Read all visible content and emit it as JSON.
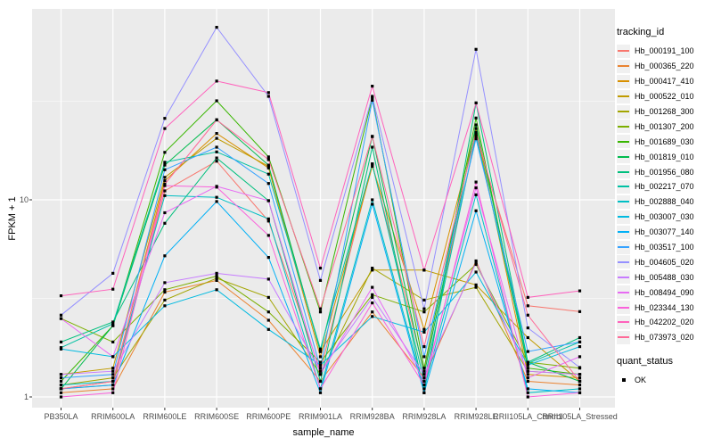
{
  "figure": {
    "background": "#ffffff",
    "panel_bg": "#ebebeb",
    "grid_color": "#ffffff",
    "axis_text_color": "#4d4d4d",
    "tick_mark_color": "#333333"
  },
  "chart_data": {
    "type": "line",
    "title": "",
    "xlabel": "sample_name",
    "ylabel": "FPKM + 1",
    "y_scale": "log10",
    "y_ticks": [
      1,
      10
    ],
    "y_tick_labels": [
      "1",
      "10"
    ],
    "y_minor_ticks": [
      3.162,
      31.62
    ],
    "ylim": [
      0.93,
      95
    ],
    "grid": true,
    "legend_position": "right",
    "point_shape": "filled-square",
    "point_color": "#000000",
    "categories": [
      "PB350LA",
      "RRIM600LA",
      "RRIM600LE",
      "RRIM600SE",
      "RRIM600PE",
      "RRIM901LA",
      "RRIM928BA",
      "RRIM928LA",
      "RRIM928LE",
      "RRII105LA_Control",
      "RRII105LA_Stressed"
    ],
    "series": [
      {
        "name": "Hb_000191_100",
        "color": "#F8766D",
        "values": [
          1.1,
          1.15,
          11.1,
          15.7,
          7.8,
          1.35,
          15.2,
          1.35,
          21.0,
          2.9,
          2.71
        ]
      },
      {
        "name": "Hb_000365_220",
        "color": "#EA8331",
        "values": [
          1.05,
          1.1,
          3.4,
          3.9,
          2.45,
          1.2,
          2.7,
          1.25,
          4.9,
          1.2,
          1.15
        ]
      },
      {
        "name": "Hb_000417_410",
        "color": "#D89000",
        "values": [
          1.1,
          1.2,
          12.5,
          21.7,
          14.5,
          1.6,
          14.8,
          2.2,
          23.0,
          1.3,
          1.25
        ]
      },
      {
        "name": "Hb_000522_010",
        "color": "#C09B00",
        "values": [
          1.3,
          1.4,
          13.0,
          20.5,
          14.8,
          1.7,
          4.4,
          4.4,
          3.7,
          2.0,
          1.2
        ]
      },
      {
        "name": "Hb_001268_300",
        "color": "#A3A500",
        "values": [
          1.15,
          1.25,
          3.1,
          4.0,
          3.2,
          1.3,
          4.5,
          3.1,
          3.6,
          1.35,
          1.3
        ]
      },
      {
        "name": "Hb_001307_200",
        "color": "#7CAE00",
        "values": [
          2.5,
          1.9,
          3.5,
          4.1,
          2.7,
          1.5,
          3.3,
          2.7,
          4.7,
          1.5,
          1.4
        ]
      },
      {
        "name": "Hb_001689_030",
        "color": "#39B600",
        "values": [
          1.2,
          2.3,
          17.4,
          31.8,
          16.5,
          2.7,
          33.0,
          1.4,
          26.0,
          1.4,
          1.3
        ]
      },
      {
        "name": "Hb_001819_010",
        "color": "#00BB4E",
        "values": [
          1.1,
          2.3,
          15.0,
          25.5,
          15.0,
          1.7,
          20.9,
          1.3,
          24.0,
          1.5,
          1.2
        ]
      },
      {
        "name": "Hb_001956_080",
        "color": "#00BF7D",
        "values": [
          1.9,
          2.4,
          7.6,
          16.3,
          9.9,
          1.2,
          18.5,
          1.05,
          31.0,
          1.5,
          2.0
        ]
      },
      {
        "name": "Hb_002217_070",
        "color": "#00C1A3",
        "values": [
          1.78,
          2.35,
          15.5,
          17.5,
          13.5,
          1.75,
          15.2,
          1.2,
          21.5,
          1.48,
          1.9
        ]
      },
      {
        "name": "Hb_002888_040",
        "color": "#00BFC4",
        "values": [
          1.15,
          1.2,
          10.5,
          10.3,
          8.0,
          1.1,
          10.0,
          1.1,
          10.6,
          1.05,
          1.1
        ]
      },
      {
        "name": "Hb_003007_030",
        "color": "#00BAE0",
        "values": [
          1.75,
          1.6,
          2.9,
          3.5,
          2.2,
          1.45,
          2.56,
          2.13,
          4.3,
          1.45,
          1.8
        ]
      },
      {
        "name": "Hb_003077_140",
        "color": "#00B0F6",
        "values": [
          1.1,
          1.15,
          5.2,
          9.8,
          5.1,
          1.05,
          9.5,
          1.05,
          8.8,
          1.1,
          1.05
        ]
      },
      {
        "name": "Hb_003517_100",
        "color": "#35A2FF",
        "values": [
          1.25,
          1.3,
          14.2,
          18.5,
          12.1,
          1.4,
          32.0,
          1.6,
          20.4,
          1.7,
          1.9
        ]
      },
      {
        "name": "Hb_004605_020",
        "color": "#9590FF",
        "values": [
          2.6,
          4.24,
          25.9,
          75.0,
          33.5,
          3.9,
          33.5,
          2.8,
          58.0,
          2.24,
          1.41
        ]
      },
      {
        "name": "Hb_005488_030",
        "color": "#C77CFF",
        "values": [
          1.3,
          1.35,
          3.8,
          4.24,
          3.96,
          1.35,
          3.2,
          1.3,
          4.8,
          1.35,
          1.3
        ]
      },
      {
        "name": "Hb_008494_090",
        "color": "#E76BF3",
        "values": [
          2.5,
          1.6,
          8.6,
          11.7,
          9.9,
          1.3,
          3.6,
          1.2,
          11.5,
          1.25,
          1.6
        ]
      },
      {
        "name": "Hb_023344_130",
        "color": "#FA62DB",
        "values": [
          1.0,
          1.05,
          11.8,
          11.6,
          6.6,
          1.1,
          3.0,
          1.15,
          12.3,
          1.0,
          1.05
        ]
      },
      {
        "name": "Hb_042202_020",
        "color": "#FF62BC",
        "values": [
          3.26,
          3.52,
          23.0,
          40.0,
          35.0,
          4.5,
          37.7,
          4.4,
          31.0,
          3.2,
          3.45
        ]
      },
      {
        "name": "Hb_073973_020",
        "color": "#FF6A98",
        "values": [
          1.1,
          1.2,
          12.0,
          25.4,
          16.0,
          2.8,
          21.0,
          1.8,
          22.0,
          2.6,
          1.2
        ]
      }
    ]
  },
  "legend": {
    "tracking_title": "tracking_id",
    "quant_title": "quant_status",
    "quant_items": [
      {
        "label": "OK"
      }
    ]
  }
}
